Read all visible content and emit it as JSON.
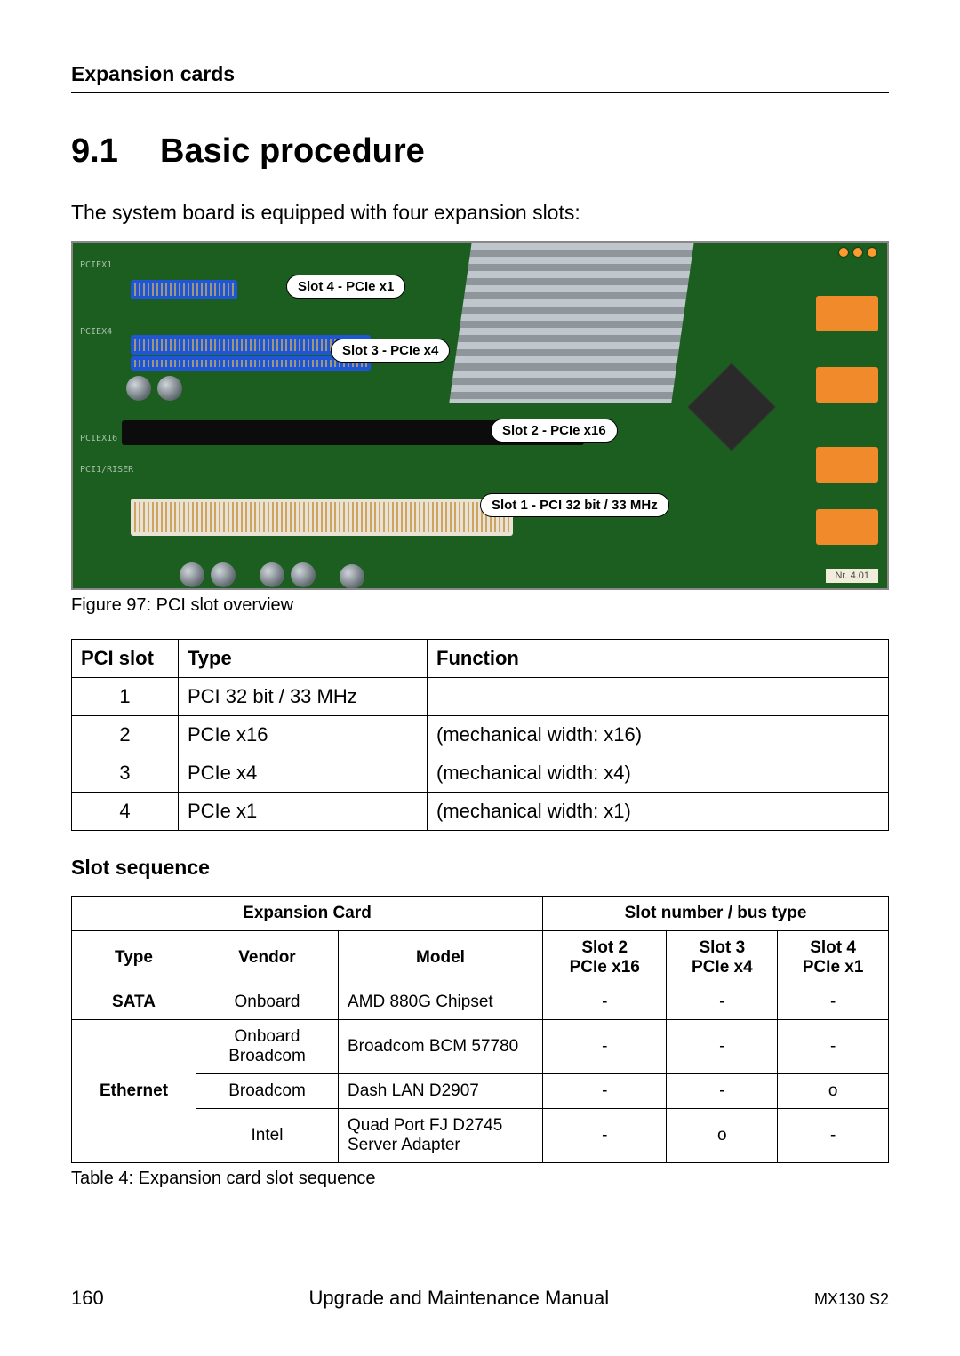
{
  "header": {
    "title": "Expansion cards"
  },
  "section": {
    "number": "9.1",
    "title": "Basic procedure"
  },
  "intro": "The system board is equipped with four expansion slots:",
  "figure": {
    "caption": "Figure 97: PCI slot overview",
    "labels": {
      "slot4": "Slot 4 - PCIe x1",
      "slot3": "Slot 3 - PCIe x4",
      "slot2": "Slot 2 - PCIe x16",
      "slot1": "Slot 1 - PCI 32 bit / 33 MHz"
    },
    "board_color": "#1b5e20",
    "slot_colors": {
      "pcie": "#1e56d6",
      "pci": "#e9e3d6",
      "x16": "#0c0c0c",
      "sata": "#f08a2a"
    }
  },
  "table1": {
    "headers": [
      "PCI slot",
      "Type",
      "Function"
    ],
    "rows": [
      [
        "1",
        "PCI 32 bit / 33 MHz",
        ""
      ],
      [
        "2",
        "PCIe x16",
        "(mechanical width: x16)"
      ],
      [
        "3",
        "PCIe x4",
        "(mechanical width: x4)"
      ],
      [
        "4",
        "PCIe x1",
        "(mechanical width: x1)"
      ]
    ]
  },
  "subheading": "Slot sequence",
  "table2": {
    "top_headers": [
      "Expansion Card",
      "Slot number / bus type"
    ],
    "sub_headers": [
      "Type",
      "Vendor",
      "Model",
      "Slot 2\nPCIe x16",
      "Slot 3\nPCIe x4",
      "Slot 4\nPCIe x1"
    ],
    "sub_headers_l1": [
      "Type",
      "Vendor",
      "Model",
      "Slot 2",
      "Slot 3",
      "Slot 4"
    ],
    "sub_headers_l2": [
      "",
      "",
      "",
      "PCIe x16",
      "PCIe x4",
      "PCIe x1"
    ],
    "rows": [
      {
        "type": "SATA",
        "type_rowspan": 1,
        "vendor": "Onboard",
        "model": "AMD 880G Chipset",
        "s2": "-",
        "s3": "-",
        "s4": "-"
      },
      {
        "type": "Ethernet",
        "type_rowspan": 3,
        "vendor": "Onboard Broadcom",
        "model": "Broadcom BCM 57780",
        "s2": "-",
        "s3": "-",
        "s4": "-"
      },
      {
        "vendor": "Broadcom",
        "model": "Dash LAN D2907",
        "s2": "-",
        "s3": "-",
        "s4": "o"
      },
      {
        "vendor": "Intel",
        "model": "Quad Port FJ D2745 Server Adapter",
        "s2": "-",
        "s3": "o",
        "s4": "-"
      }
    ],
    "caption": "Table 4: Expansion card slot sequence"
  },
  "footer": {
    "page": "160",
    "title": "Upgrade and Maintenance Manual",
    "model": "MX130 S2"
  }
}
